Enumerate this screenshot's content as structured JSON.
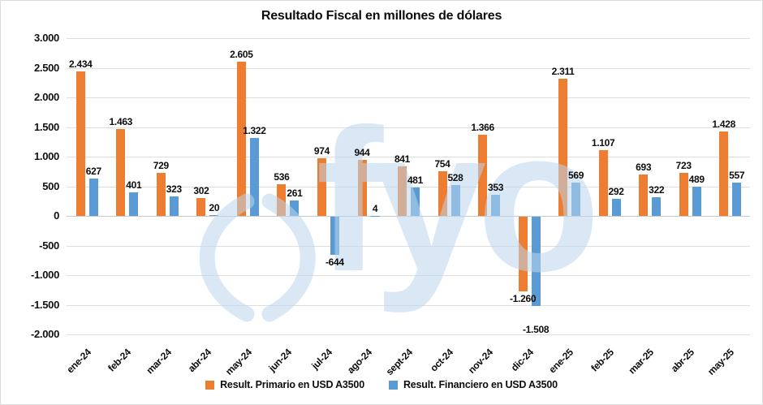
{
  "chart_data": {
    "type": "bar",
    "title": "Resultado Fiscal en millones de dólares",
    "categories": [
      "ene-24",
      "feb-24",
      "mar-24",
      "abr-24",
      "may-24",
      "jun-24",
      "jul-24",
      "ago-24",
      "sept-24",
      "oct-24",
      "nov-24",
      "dic-24",
      "ene-25",
      "feb-25",
      "mar-25",
      "abr-25",
      "may-25"
    ],
    "series": [
      {
        "name": "Result. Primario en USD A3500",
        "color": "#ED7D31",
        "values": [
          2434,
          1463,
          729,
          302,
          2605,
          536,
          974,
          944,
          841,
          754,
          1366,
          -1260,
          2311,
          1107,
          693,
          723,
          1428
        ],
        "labels": [
          "2.434",
          "1.463",
          "729",
          "302",
          "2.605",
          "536",
          "974",
          "944",
          "841",
          "754",
          "1.366",
          "-1.260",
          "2.311",
          "1.107",
          "693",
          "723",
          "1.428"
        ]
      },
      {
        "name": "Result. Financiero en USD A3500",
        "color": "#5B9BD5",
        "values": [
          627,
          401,
          323,
          20,
          1322,
          261,
          -644,
          4,
          481,
          528,
          353,
          -1508,
          569,
          292,
          322,
          489,
          557
        ],
        "labels": [
          "627",
          "401",
          "323",
          "20",
          "1.322",
          "261",
          "-644",
          "4",
          "481",
          "528",
          "353",
          "-1.508",
          "569",
          "292",
          "322",
          "489",
          "557"
        ]
      }
    ],
    "ylim": [
      -2000,
      3000
    ],
    "ytick_step": 500,
    "ytick_labels": [
      "3.000",
      "2.500",
      "2.000",
      "1.500",
      "1.000",
      "500",
      "0",
      "-500",
      "-1.000",
      "-1.500",
      "-2.000"
    ],
    "grid": true,
    "legend_position": "bottom",
    "number_format": "thousands-dot"
  },
  "watermark": {
    "logo_text": "fyo",
    "color": "#BDD7EE"
  }
}
